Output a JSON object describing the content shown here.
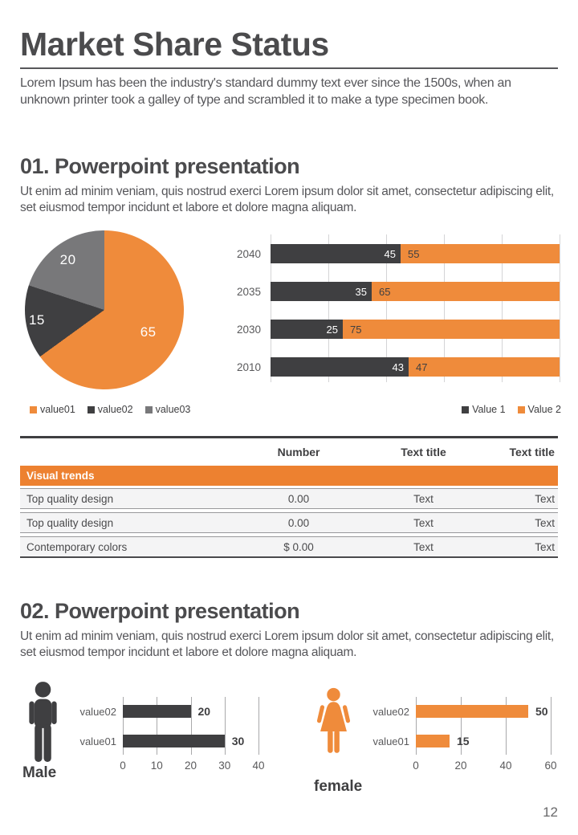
{
  "page": {
    "title": "Market Share Status",
    "intro": "Lorem Ipsum has been the industry's standard dummy text ever since the 1500s, when an unknown printer took a galley of type and scrambled it to make a type specimen book.",
    "page_number": "12"
  },
  "colors": {
    "orange": "#EF8B3B",
    "orange_deep": "#ED8130",
    "dark": "#3F3F41",
    "gray": "#78787A"
  },
  "section1": {
    "heading": "01. Powerpoint presentation",
    "body": "Ut enim ad minim veniam, quis nostrud exerci  Lorem ipsum dolor sit amet, consectetur adipiscing elit, set eiusmod tempor incidunt et labore et dolore magna aliquam."
  },
  "section2": {
    "heading": "02. Powerpoint presentation",
    "body": "Ut enim ad minim veniam, quis nostrud exerci  Lorem ipsum dolor sit amet, consectetur adipiscing elit, set eiusmod tempor incidunt et labore et dolore magna aliquam."
  },
  "chart_data": [
    {
      "id": "pie",
      "type": "pie",
      "labels": [
        "value01",
        "value02",
        "value03"
      ],
      "values": [
        65,
        15,
        20
      ],
      "colors": [
        "#EF8B3B",
        "#3F3F41",
        "#78787A"
      ],
      "legend": [
        "value01",
        "value02",
        "value03"
      ],
      "legend_position": "bottom-left",
      "data_labels": [
        "65",
        "15",
        "20"
      ]
    },
    {
      "id": "stacked",
      "type": "bar",
      "orientation": "horizontal",
      "stacked_percent": true,
      "categories": [
        "2040",
        "2035",
        "2030",
        "2010"
      ],
      "series": [
        {
          "name": "Value 1",
          "color": "#3F3F41",
          "values": [
            45,
            35,
            25,
            43
          ]
        },
        {
          "name": "Value 2",
          "color": "#EF8B3B",
          "values": [
            55,
            65,
            75,
            47
          ]
        }
      ],
      "xlim": [
        0,
        100
      ],
      "gridline_count": 6,
      "legend": [
        "Value 1",
        "Value 2"
      ],
      "legend_position": "bottom-right"
    },
    {
      "id": "male",
      "type": "bar",
      "title": "Male",
      "orientation": "horizontal",
      "categories": [
        "value02",
        "value01"
      ],
      "values": [
        20,
        30
      ],
      "color": "#3F3F41",
      "xticks": [
        "0",
        "10",
        "20",
        "30",
        "40"
      ],
      "xlim": [
        0,
        40
      ]
    },
    {
      "id": "female",
      "type": "bar",
      "title": "female",
      "orientation": "horizontal",
      "categories": [
        "value02",
        "value01"
      ],
      "values": [
        50,
        15
      ],
      "color": "#EF8B3B",
      "xticks": [
        "0",
        "20",
        "40",
        "60"
      ],
      "xlim": [
        0,
        60
      ]
    }
  ],
  "table": {
    "headers": [
      "",
      "Number",
      "Text title",
      "Text title"
    ],
    "group_row": "Visual trends",
    "rows": [
      [
        "Top quality design",
        "0.00",
        "Text",
        "Text"
      ],
      [
        "Top quality design",
        "0.00",
        "Text",
        "Text"
      ],
      [
        "Contemporary colors",
        "$ 0.00",
        "Text",
        "Text"
      ]
    ]
  }
}
